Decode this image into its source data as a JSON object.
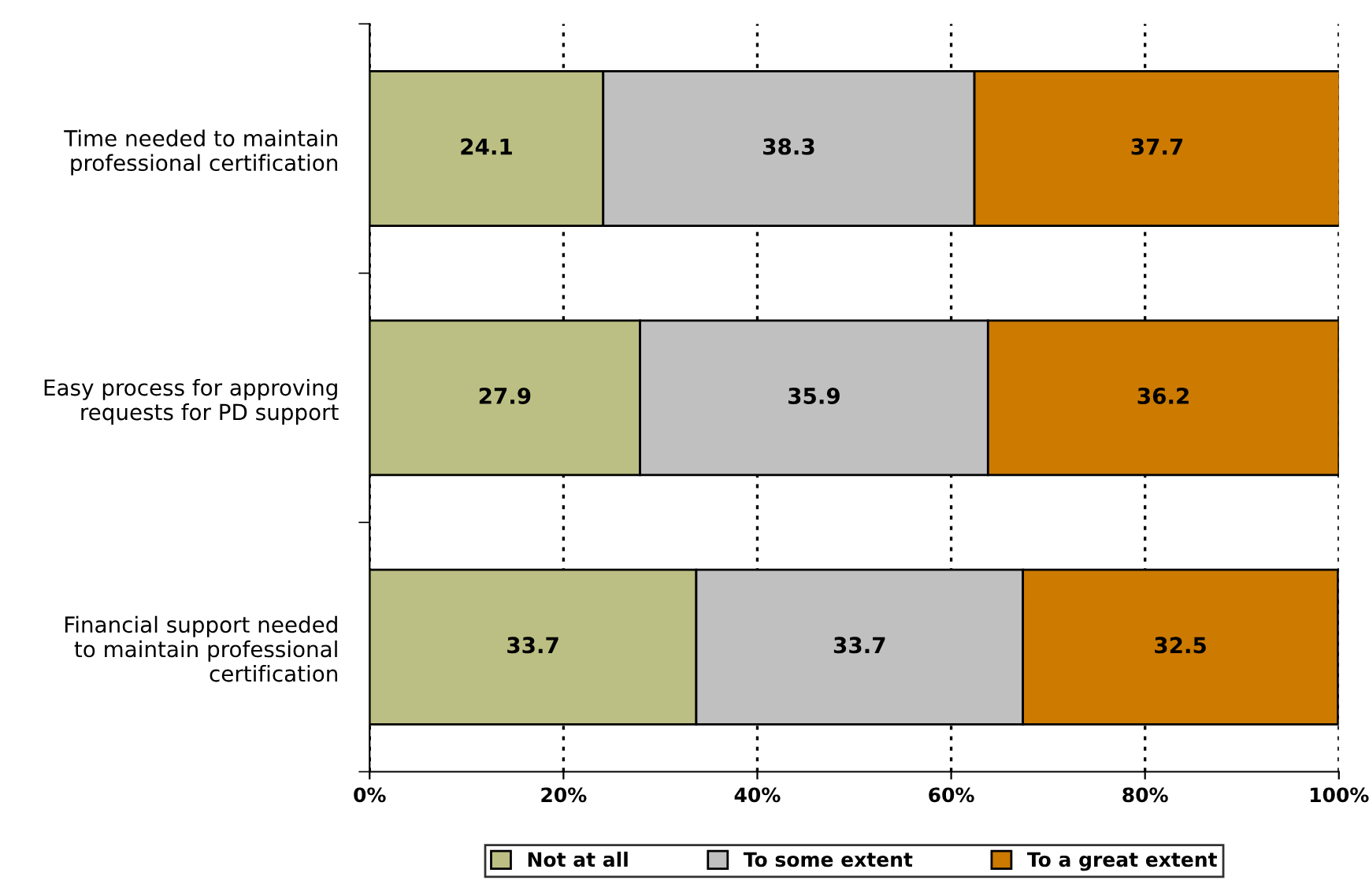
{
  "chart_data": {
    "type": "bar",
    "orientation": "horizontal",
    "stacked": true,
    "categories": [
      "Time needed to maintain\nprofessional certification",
      "Easy process for approving\nrequests for PD support",
      "Financial support needed\nto maintain professional\ncertification"
    ],
    "series": [
      {
        "name": "Not at all",
        "color": "#bcbf83",
        "values": [
          24.1,
          27.9,
          33.7
        ]
      },
      {
        "name": "To some extent",
        "color": "#c0c0c0",
        "values": [
          38.3,
          35.9,
          33.7
        ]
      },
      {
        "name": "To a great extent",
        "color": "#cc7a00",
        "values": [
          37.7,
          36.2,
          32.5
        ]
      }
    ],
    "xlim": [
      0,
      100
    ],
    "xticks": [
      {
        "value": 0,
        "label": "0%"
      },
      {
        "value": 20,
        "label": "20%"
      },
      {
        "value": 40,
        "label": "40%"
      },
      {
        "value": 60,
        "label": "60%"
      },
      {
        "value": 80,
        "label": "80%"
      },
      {
        "value": 100,
        "label": "100%"
      }
    ],
    "grid": "x",
    "legend": "bottom",
    "data_labels": true
  }
}
